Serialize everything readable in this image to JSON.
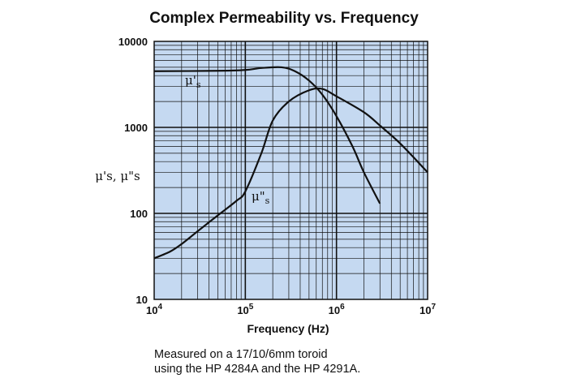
{
  "chart_data": {
    "type": "line",
    "title": "Complex Permeability vs. Frequency",
    "xlabel": "Frequency (Hz)",
    "ylabel": "μ's, μ\"s",
    "xscale": "log",
    "yscale": "log",
    "xlim": [
      10000,
      10000000
    ],
    "ylim": [
      10,
      10000
    ],
    "x_ticks": [
      {
        "base": "10",
        "exp": "4"
      },
      {
        "base": "10",
        "exp": "5"
      },
      {
        "base": "10",
        "exp": "6"
      },
      {
        "base": "10",
        "exp": "7"
      }
    ],
    "y_ticks": [
      "10",
      "100",
      "1000",
      "10000"
    ],
    "series": [
      {
        "name": "μ's",
        "label_main": "μ'",
        "label_sub": "s",
        "points": [
          [
            10000,
            4500
          ],
          [
            50000,
            4550
          ],
          [
            100000,
            4650
          ],
          [
            150000,
            4900
          ],
          [
            250000,
            5000
          ],
          [
            350000,
            4500
          ],
          [
            500000,
            3500
          ],
          [
            700000,
            2400
          ],
          [
            1000000,
            1350
          ],
          [
            1500000,
            600
          ],
          [
            2000000,
            300
          ],
          [
            3000000,
            130
          ]
        ]
      },
      {
        "name": "μ\"s",
        "label_main": "μ\"",
        "label_sub": "s",
        "points": [
          [
            10000,
            30
          ],
          [
            15000,
            36
          ],
          [
            20000,
            44
          ],
          [
            30000,
            62
          ],
          [
            50000,
            95
          ],
          [
            80000,
            140
          ],
          [
            100000,
            180
          ],
          [
            150000,
            500
          ],
          [
            200000,
            1200
          ],
          [
            300000,
            2000
          ],
          [
            500000,
            2700
          ],
          [
            700000,
            2800
          ],
          [
            1000000,
            2300
          ],
          [
            2000000,
            1500
          ],
          [
            3000000,
            1050
          ],
          [
            5000000,
            650
          ],
          [
            10000000,
            300
          ]
        ]
      }
    ]
  },
  "footnote": {
    "line1": "Measured on a 17/10/6mm toroid",
    "line2": "using the HP 4284A and the HP 4291A."
  },
  "colors": {
    "plot_background": "#c5d9f1",
    "grid": "#111111",
    "curve": "#111111"
  }
}
